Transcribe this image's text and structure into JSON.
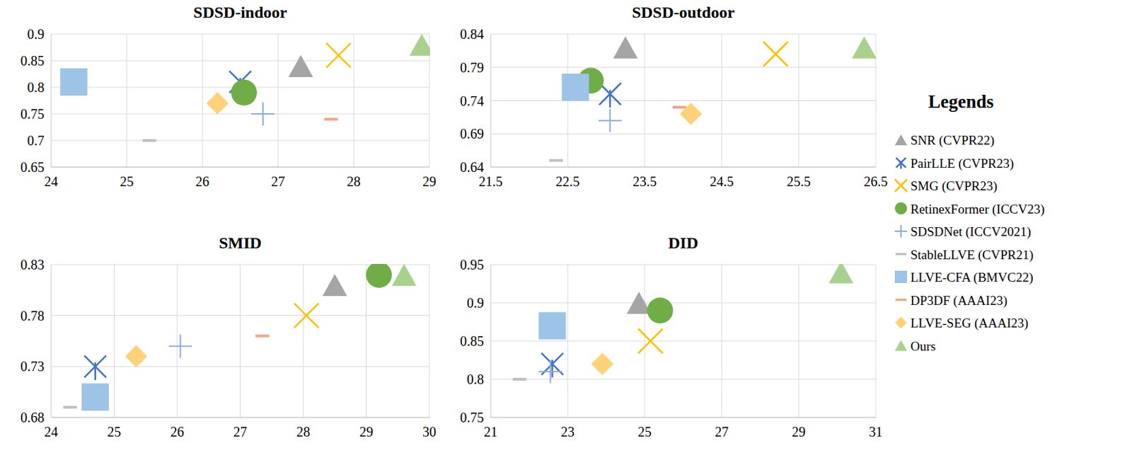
{
  "chart_data": [
    {
      "type": "scatter",
      "title": "SDSD-indoor",
      "xlim": [
        24,
        29
      ],
      "xticks": [
        24,
        25,
        26,
        27,
        28,
        29
      ],
      "ylim": [
        0.65,
        0.9
      ],
      "yticks": [
        0.65,
        0.7,
        0.75,
        0.8,
        0.85,
        0.9
      ],
      "grid": true,
      "legend": "right",
      "legend_title": "Legends",
      "series": [
        {
          "name": "SNR (CVPR22)",
          "color": "#a5a5a5",
          "marker": "triangle",
          "x": [
            27.3
          ],
          "values": [
            0.84
          ]
        },
        {
          "name": "PairLLE (CVPR23)",
          "color": "#4472c4",
          "marker": "asterisk",
          "x": [
            26.5
          ],
          "values": [
            0.81
          ]
        },
        {
          "name": "SMG (CVPR23)",
          "color": "#ffc000",
          "marker": "x",
          "x": [
            27.8
          ],
          "values": [
            0.86
          ]
        },
        {
          "name": "RetinexFormer (ICCV23)",
          "color": "#70ad47",
          "marker": "circle",
          "x": [
            26.55
          ],
          "values": [
            0.79
          ]
        },
        {
          "name": "SDSDNet (ICCV2021)",
          "color": "#8faadc",
          "marker": "plus",
          "x": [
            26.8
          ],
          "values": [
            0.75
          ]
        },
        {
          "name": "StableLLVE (CVPR21)",
          "color": "#bfbfbf",
          "marker": "dash",
          "x": [
            25.3
          ],
          "values": [
            0.7
          ]
        },
        {
          "name": "LLVE-CFA (BMVC22)",
          "color": "#9dc3e6",
          "marker": "square",
          "x": [
            24.3
          ],
          "values": [
            0.81
          ]
        },
        {
          "name": "DP3DF (AAAI23)",
          "color": "#f4a582",
          "marker": "dash",
          "x": [
            27.7
          ],
          "values": [
            0.74
          ]
        },
        {
          "name": "LLVE-SEG (AAAI23)",
          "color": "#ffd27a",
          "marker": "diamond",
          "x": [
            26.2
          ],
          "values": [
            0.77
          ]
        },
        {
          "name": "Ours",
          "color": "#a9d18e",
          "marker": "triangle",
          "x": [
            28.9
          ],
          "values": [
            0.88
          ]
        }
      ]
    },
    {
      "type": "scatter",
      "title": "SDSD-outdoor",
      "xlim": [
        21.5,
        26.5
      ],
      "xticks": [
        21.5,
        22.5,
        23.5,
        24.5,
        25.5,
        26.5
      ],
      "ylim": [
        0.64,
        0.84
      ],
      "yticks": [
        0.64,
        0.69,
        0.74,
        0.79,
        0.84
      ],
      "grid": true,
      "series": [
        {
          "name": "SNR (CVPR22)",
          "color": "#a5a5a5",
          "marker": "triangle",
          "x": [
            23.25
          ],
          "values": [
            0.82
          ]
        },
        {
          "name": "PairLLE (CVPR23)",
          "color": "#4472c4",
          "marker": "asterisk",
          "x": [
            23.05
          ],
          "values": [
            0.75
          ]
        },
        {
          "name": "SMG (CVPR23)",
          "color": "#ffc000",
          "marker": "x",
          "x": [
            25.2
          ],
          "values": [
            0.81
          ]
        },
        {
          "name": "RetinexFormer (ICCV23)",
          "color": "#70ad47",
          "marker": "circle",
          "x": [
            22.8
          ],
          "values": [
            0.77
          ]
        },
        {
          "name": "SDSDNet (ICCV2021)",
          "color": "#8faadc",
          "marker": "plus",
          "x": [
            23.05
          ],
          "values": [
            0.71
          ]
        },
        {
          "name": "StableLLVE (CVPR21)",
          "color": "#bfbfbf",
          "marker": "dash",
          "x": [
            22.35
          ],
          "values": [
            0.65
          ]
        },
        {
          "name": "LLVE-CFA (BMVC22)",
          "color": "#9dc3e6",
          "marker": "square",
          "x": [
            22.6
          ],
          "values": [
            0.76
          ]
        },
        {
          "name": "DP3DF (AAAI23)",
          "color": "#f4a582",
          "marker": "dash",
          "x": [
            23.95
          ],
          "values": [
            0.73
          ]
        },
        {
          "name": "LLVE-SEG (AAAI23)",
          "color": "#ffd27a",
          "marker": "diamond",
          "x": [
            24.1
          ],
          "values": [
            0.72
          ]
        },
        {
          "name": "Ours",
          "color": "#a9d18e",
          "marker": "triangle",
          "x": [
            26.35
          ],
          "values": [
            0.82
          ]
        }
      ]
    },
    {
      "type": "scatter",
      "title": "SMID",
      "xlim": [
        24,
        30
      ],
      "xticks": [
        24,
        25,
        26,
        27,
        28,
        29,
        30
      ],
      "ylim": [
        0.68,
        0.83
      ],
      "yticks": [
        0.68,
        0.73,
        0.78,
        0.83
      ],
      "grid": true,
      "series": [
        {
          "name": "SNR (CVPR22)",
          "color": "#a5a5a5",
          "marker": "triangle",
          "x": [
            28.5
          ],
          "values": [
            0.81
          ]
        },
        {
          "name": "PairLLE (CVPR23)",
          "color": "#4472c4",
          "marker": "asterisk",
          "x": [
            24.7
          ],
          "values": [
            0.73
          ]
        },
        {
          "name": "SMG (CVPR23)",
          "color": "#ffc000",
          "marker": "x",
          "x": [
            28.05
          ],
          "values": [
            0.78
          ]
        },
        {
          "name": "RetinexFormer (ICCV23)",
          "color": "#70ad47",
          "marker": "circle",
          "x": [
            29.2
          ],
          "values": [
            0.82
          ]
        },
        {
          "name": "SDSDNet (ICCV2021)",
          "color": "#8faadc",
          "marker": "plus",
          "x": [
            26.05
          ],
          "values": [
            0.75
          ]
        },
        {
          "name": "StableLLVE (CVPR21)",
          "color": "#bfbfbf",
          "marker": "dash",
          "x": [
            24.3
          ],
          "values": [
            0.69
          ]
        },
        {
          "name": "LLVE-CFA (BMVC22)",
          "color": "#9dc3e6",
          "marker": "square",
          "x": [
            24.7
          ],
          "values": [
            0.7
          ]
        },
        {
          "name": "DP3DF (AAAI23)",
          "color": "#f4a582",
          "marker": "dash",
          "x": [
            27.35
          ],
          "values": [
            0.76
          ]
        },
        {
          "name": "LLVE-SEG (AAAI23)",
          "color": "#ffd27a",
          "marker": "diamond",
          "x": [
            25.35
          ],
          "values": [
            0.74
          ]
        },
        {
          "name": "Ours",
          "color": "#a9d18e",
          "marker": "triangle",
          "x": [
            29.6
          ],
          "values": [
            0.82
          ]
        }
      ]
    },
    {
      "type": "scatter",
      "title": "DID",
      "xlim": [
        21,
        31
      ],
      "xticks": [
        21,
        23,
        25,
        27,
        29,
        31
      ],
      "ylim": [
        0.75,
        0.95
      ],
      "yticks": [
        0.75,
        0.8,
        0.85,
        0.9,
        0.95
      ],
      "grid": true,
      "series": [
        {
          "name": "SNR (CVPR22)",
          "color": "#a5a5a5",
          "marker": "triangle",
          "x": [
            24.85
          ],
          "values": [
            0.9
          ]
        },
        {
          "name": "PairLLE (CVPR23)",
          "color": "#4472c4",
          "marker": "asterisk",
          "x": [
            22.6
          ],
          "values": [
            0.82
          ]
        },
        {
          "name": "SMG (CVPR23)",
          "color": "#ffc000",
          "marker": "x",
          "x": [
            25.15
          ],
          "values": [
            0.85
          ]
        },
        {
          "name": "RetinexFormer (ICCV23)",
          "color": "#70ad47",
          "marker": "circle",
          "x": [
            25.4
          ],
          "values": [
            0.89
          ]
        },
        {
          "name": "SDSDNet (ICCV2021)",
          "color": "#8faadc",
          "marker": "plus",
          "x": [
            22.55
          ],
          "values": [
            0.81
          ]
        },
        {
          "name": "StableLLVE (CVPR21)",
          "color": "#bfbfbf",
          "marker": "dash",
          "x": [
            21.75
          ],
          "values": [
            0.8
          ]
        },
        {
          "name": "LLVE-CFA (BMVC22)",
          "color": "#9dc3e6",
          "marker": "square",
          "x": [
            22.6
          ],
          "values": [
            0.87
          ]
        },
        {
          "name": "DP3DF (AAAI23)",
          "color": "#f4a582",
          "marker": "dash",
          "x": [
            null
          ],
          "values": [
            null
          ]
        },
        {
          "name": "LLVE-SEG (AAAI23)",
          "color": "#ffd27a",
          "marker": "diamond",
          "x": [
            23.9
          ],
          "values": [
            0.82
          ]
        },
        {
          "name": "Ours",
          "color": "#a9d18e",
          "marker": "triangle",
          "x": [
            30.1
          ],
          "values": [
            0.94
          ]
        }
      ]
    }
  ]
}
